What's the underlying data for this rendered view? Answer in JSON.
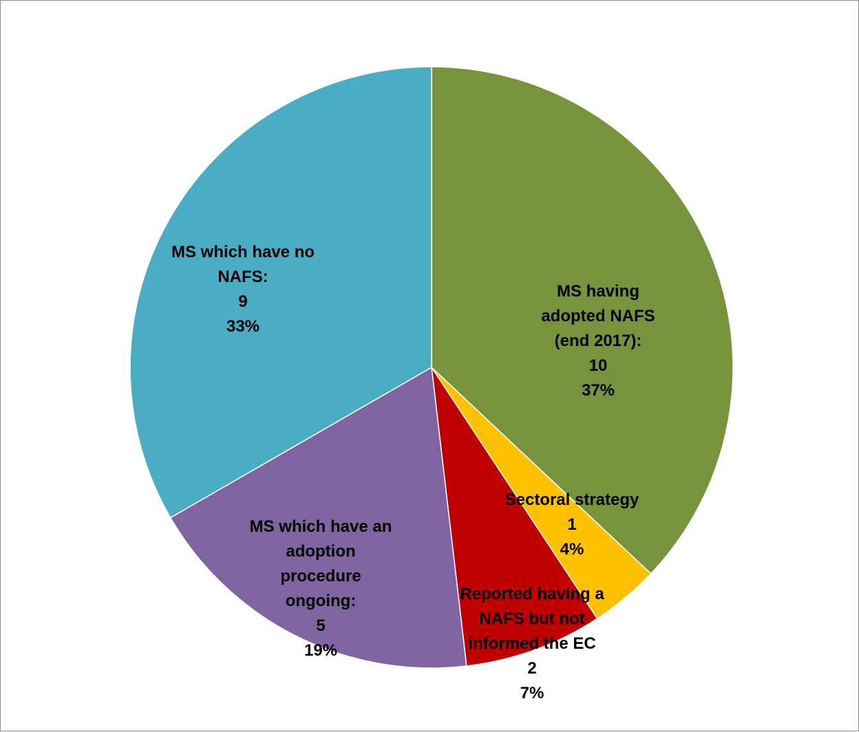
{
  "chart_data": {
    "type": "pie",
    "title": "",
    "slices": [
      {
        "label": "MS having adopted NAFS (end 2017):",
        "label_lines": [
          "MS having",
          "adopted NAFS",
          "(end 2017):"
        ],
        "value": 10,
        "percent": "37%",
        "color": "#77933c"
      },
      {
        "label": "Sectoral strategy",
        "label_lines": [
          "Sectoral strategy"
        ],
        "value": 1,
        "percent": "4%",
        "color": "#ffc000"
      },
      {
        "label": "Reported having a NAFS but not informed the EC",
        "label_lines": [
          "Reported having a",
          "NAFS but not",
          "informed the EC"
        ],
        "value": 2,
        "percent": "7%",
        "color": "#c00000"
      },
      {
        "label": "MS which have an adoption procedure ongoing:",
        "label_lines": [
          "MS which have an",
          "adoption",
          "procedure",
          "ongoing:"
        ],
        "value": 5,
        "percent": "19%",
        "color": "#8064a2"
      },
      {
        "label": "MS which have no NAFS:",
        "label_lines": [
          "MS which have no",
          "NAFS:"
        ],
        "value": 9,
        "percent": "33%",
        "color": "#4bacc6"
      }
    ],
    "legend": "none",
    "start_angle": "12 o'clock, clockwise"
  }
}
